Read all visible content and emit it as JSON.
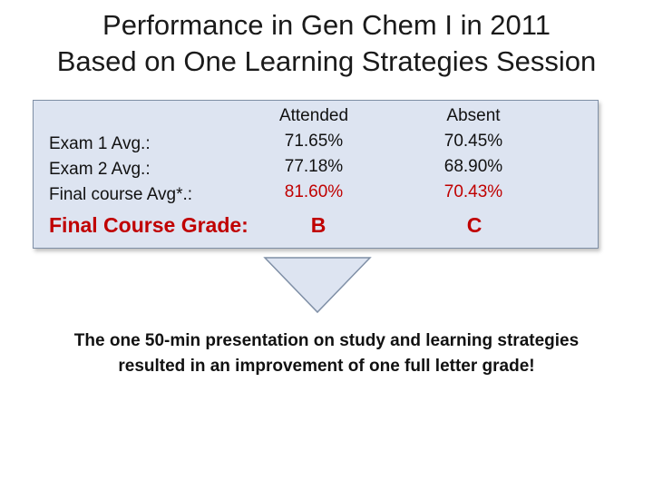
{
  "title": {
    "line1": "Performance in Gen Chem I in 2011",
    "line2": "Based on One Learning Strategies Session"
  },
  "table": {
    "row_labels": [
      "Exam 1 Avg.:",
      "Exam 2 Avg.:",
      "Final course Avg*.:"
    ],
    "columns": [
      {
        "header": "Attended",
        "values": [
          "71.65%",
          "77.18%",
          "81.60%"
        ],
        "grade": "B"
      },
      {
        "header": "Absent",
        "values": [
          "70.45%",
          "68.90%",
          "70.43%"
        ],
        "grade": "C"
      }
    ],
    "grade_label": "Final Course Grade:"
  },
  "colors": {
    "box_fill": "#dde4f1",
    "highlight": "#c00000",
    "arrow_fill": "#dde4f1",
    "arrow_stroke": "#7f8fa6"
  },
  "conclusion": {
    "line1": "The one 50-min presentation on study and learning strategies",
    "line2": "resulted in an improvement of one full letter grade!"
  }
}
